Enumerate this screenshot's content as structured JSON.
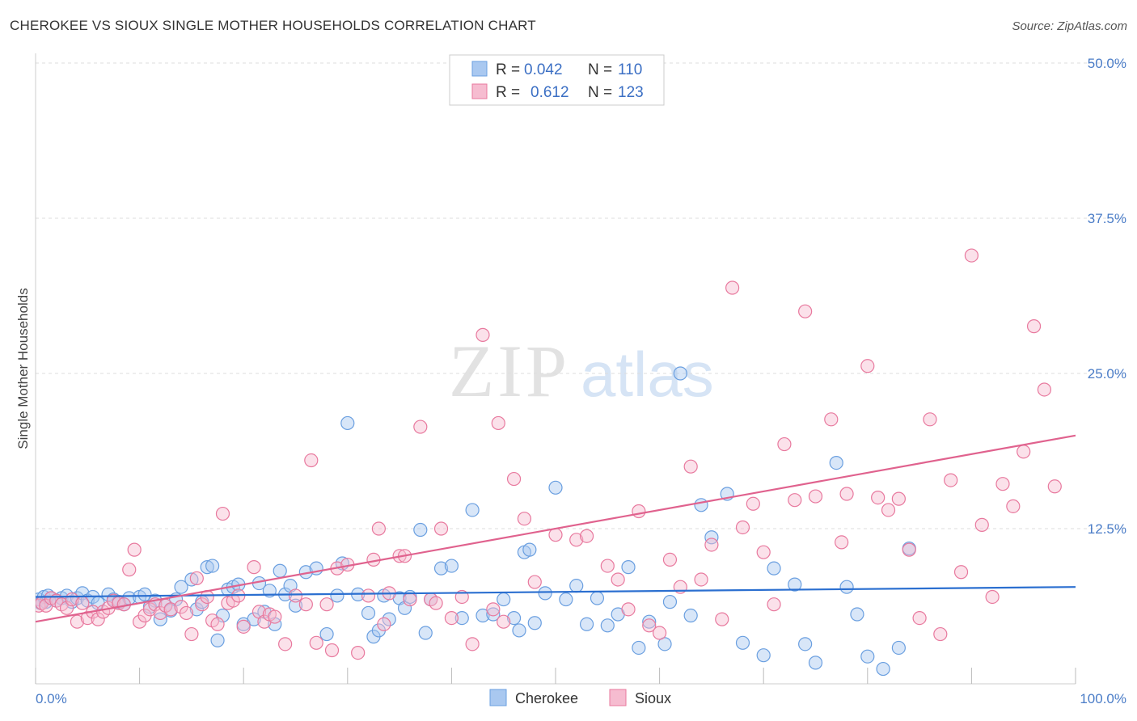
{
  "header": {
    "title": "CHEROKEE VS SIOUX SINGLE MOTHER HOUSEHOLDS CORRELATION CHART",
    "source": "Source: ZipAtlas.com"
  },
  "watermark": {
    "zip": "ZIP",
    "atlas": "atlas"
  },
  "legend": {
    "rows": [
      {
        "r_label": "R =",
        "r_value": "0.042",
        "n_label": "N =",
        "n_value": "110"
      },
      {
        "r_label": "R =",
        "r_value": "0.612",
        "n_label": "N =",
        "n_value": "123"
      }
    ]
  },
  "colors": {
    "cherokee_fill": "#a9c8f0",
    "cherokee_stroke": "#6a9fe0",
    "cherokee_line": "#2b6fd0",
    "sioux_fill": "#f6bcd0",
    "sioux_stroke": "#e8799e",
    "sioux_line": "#e0628e",
    "tick_text": "#4a7cc7",
    "grid": "#dddddd"
  },
  "chart_data": {
    "type": "scatter",
    "ylabel": "Single Mother Households",
    "xlim": [
      0,
      100
    ],
    "ylim": [
      0,
      50
    ],
    "x_tick_labels": [
      "0.0%",
      "100.0%"
    ],
    "y_ticks": [
      12.5,
      25.0,
      37.5,
      50.0
    ],
    "y_tick_labels": [
      "12.5%",
      "25.0%",
      "37.5%",
      "50.0%"
    ],
    "grid": "horizontal dashed",
    "legend_position": "top-center",
    "series": [
      {
        "name": "Cherokee",
        "n": 110,
        "r": 0.042,
        "trend": [
          [
            0,
            7.0
          ],
          [
            100,
            7.8
          ]
        ],
        "points": [
          [
            0.3,
            6.8
          ],
          [
            0.5,
            6.5
          ],
          [
            0.8,
            7.0
          ],
          [
            1.0,
            6.6
          ],
          [
            1.2,
            7.1
          ],
          [
            1.5,
            6.9
          ],
          [
            2.0,
            6.7
          ],
          [
            2.5,
            6.9
          ],
          [
            3.0,
            7.1
          ],
          [
            3.5,
            6.6
          ],
          [
            4.0,
            6.9
          ],
          [
            4.5,
            7.3
          ],
          [
            5.0,
            6.7
          ],
          [
            5.5,
            7.0
          ],
          [
            6.0,
            6.5
          ],
          [
            7.0,
            7.2
          ],
          [
            7.5,
            6.8
          ],
          [
            8.0,
            6.6
          ],
          [
            8.5,
            6.4
          ],
          [
            9.0,
            6.9
          ],
          [
            10.0,
            7.0
          ],
          [
            10.5,
            7.2
          ],
          [
            11.0,
            6.2
          ],
          [
            11.5,
            6.7
          ],
          [
            12.0,
            5.2
          ],
          [
            12.5,
            6.3
          ],
          [
            13.0,
            5.9
          ],
          [
            13.5,
            6.8
          ],
          [
            14.0,
            7.8
          ],
          [
            15.0,
            8.4
          ],
          [
            15.5,
            6.0
          ],
          [
            16.0,
            6.6
          ],
          [
            16.5,
            9.4
          ],
          [
            17.0,
            9.5
          ],
          [
            17.5,
            3.5
          ],
          [
            18.0,
            5.5
          ],
          [
            18.5,
            7.6
          ],
          [
            19.0,
            7.8
          ],
          [
            19.5,
            8.0
          ],
          [
            20.0,
            4.8
          ],
          [
            21.0,
            5.2
          ],
          [
            21.5,
            8.1
          ],
          [
            22.0,
            5.8
          ],
          [
            22.5,
            7.5
          ],
          [
            23.0,
            4.8
          ],
          [
            23.5,
            9.1
          ],
          [
            24.0,
            7.2
          ],
          [
            24.5,
            7.9
          ],
          [
            25.0,
            6.3
          ],
          [
            26.0,
            9.0
          ],
          [
            27.0,
            9.3
          ],
          [
            28.0,
            4.0
          ],
          [
            29.0,
            7.1
          ],
          [
            29.5,
            9.7
          ],
          [
            30.0,
            21.0
          ],
          [
            31.0,
            7.2
          ],
          [
            32.0,
            5.7
          ],
          [
            32.5,
            3.8
          ],
          [
            33.0,
            4.3
          ],
          [
            33.5,
            7.1
          ],
          [
            34.0,
            5.2
          ],
          [
            35.0,
            6.9
          ],
          [
            35.5,
            6.1
          ],
          [
            36.0,
            7.0
          ],
          [
            37.0,
            12.4
          ],
          [
            37.5,
            4.1
          ],
          [
            38.0,
            6.8
          ],
          [
            39.0,
            9.3
          ],
          [
            40.0,
            9.5
          ],
          [
            41.0,
            5.3
          ],
          [
            42.0,
            14.0
          ],
          [
            43.0,
            5.5
          ],
          [
            44.0,
            5.6
          ],
          [
            45.0,
            6.8
          ],
          [
            46.0,
            5.3
          ],
          [
            46.5,
            4.3
          ],
          [
            47.0,
            10.6
          ],
          [
            47.5,
            10.8
          ],
          [
            48.0,
            4.9
          ],
          [
            49.0,
            7.3
          ],
          [
            50.0,
            15.8
          ],
          [
            51.0,
            6.8
          ],
          [
            52.0,
            7.9
          ],
          [
            53.0,
            4.8
          ],
          [
            54.0,
            6.9
          ],
          [
            55.0,
            4.7
          ],
          [
            56.0,
            5.6
          ],
          [
            57.0,
            9.4
          ],
          [
            58.0,
            2.9
          ],
          [
            59.0,
            5.0
          ],
          [
            60.5,
            3.2
          ],
          [
            61.0,
            6.6
          ],
          [
            62.0,
            25.0
          ],
          [
            63.0,
            5.5
          ],
          [
            64.0,
            14.4
          ],
          [
            65.0,
            11.8
          ],
          [
            66.5,
            15.3
          ],
          [
            68.0,
            3.3
          ],
          [
            70.0,
            2.3
          ],
          [
            71.0,
            9.3
          ],
          [
            73.0,
            8.0
          ],
          [
            74.0,
            3.2
          ],
          [
            75.0,
            1.7
          ],
          [
            77.0,
            17.8
          ],
          [
            78.0,
            7.8
          ],
          [
            79.0,
            5.6
          ],
          [
            80.0,
            2.2
          ],
          [
            81.5,
            1.2
          ],
          [
            83.0,
            2.9
          ],
          [
            84.0,
            10.9
          ]
        ]
      },
      {
        "name": "Sioux",
        "n": 123,
        "r": 0.612,
        "trend": [
          [
            0,
            5.0
          ],
          [
            100,
            20.0
          ]
        ],
        "points": [
          [
            0.3,
            6.3
          ],
          [
            0.6,
            6.5
          ],
          [
            1.0,
            6.3
          ],
          [
            1.5,
            6.9
          ],
          [
            2.0,
            6.7
          ],
          [
            2.5,
            6.4
          ],
          [
            3.0,
            6.1
          ],
          [
            3.5,
            6.8
          ],
          [
            4.0,
            5.0
          ],
          [
            4.5,
            6.5
          ],
          [
            5.0,
            5.3
          ],
          [
            5.5,
            5.8
          ],
          [
            6.0,
            5.2
          ],
          [
            6.5,
            5.8
          ],
          [
            7.0,
            6.1
          ],
          [
            7.5,
            6.7
          ],
          [
            8.0,
            6.5
          ],
          [
            8.5,
            6.4
          ],
          [
            9.0,
            9.2
          ],
          [
            9.5,
            10.8
          ],
          [
            10.0,
            5.0
          ],
          [
            10.5,
            5.5
          ],
          [
            11.0,
            6.0
          ],
          [
            11.5,
            6.4
          ],
          [
            12.0,
            5.7
          ],
          [
            12.5,
            6.3
          ],
          [
            13.0,
            6.0
          ],
          [
            14.0,
            6.2
          ],
          [
            14.5,
            5.7
          ],
          [
            15.0,
            4.0
          ],
          [
            15.5,
            8.5
          ],
          [
            16.0,
            6.4
          ],
          [
            16.5,
            7.0
          ],
          [
            17.0,
            5.1
          ],
          [
            17.5,
            4.8
          ],
          [
            18.0,
            13.7
          ],
          [
            18.5,
            6.5
          ],
          [
            19.0,
            6.7
          ],
          [
            19.5,
            7.1
          ],
          [
            20.0,
            4.6
          ],
          [
            21.0,
            9.4
          ],
          [
            21.5,
            5.8
          ],
          [
            22.0,
            5.0
          ],
          [
            22.5,
            5.6
          ],
          [
            23.0,
            5.4
          ],
          [
            24.0,
            3.2
          ],
          [
            25.0,
            7.1
          ],
          [
            26.0,
            6.4
          ],
          [
            26.5,
            18.0
          ],
          [
            27.0,
            3.3
          ],
          [
            28.0,
            6.4
          ],
          [
            28.5,
            2.7
          ],
          [
            29.0,
            9.3
          ],
          [
            30.0,
            9.6
          ],
          [
            31.0,
            2.5
          ],
          [
            32.0,
            7.1
          ],
          [
            32.5,
            10.0
          ],
          [
            33.0,
            12.5
          ],
          [
            33.5,
            4.8
          ],
          [
            34.0,
            7.3
          ],
          [
            35.0,
            10.3
          ],
          [
            35.5,
            10.3
          ],
          [
            36.0,
            6.8
          ],
          [
            37.0,
            20.7
          ],
          [
            38.0,
            6.8
          ],
          [
            38.5,
            6.5
          ],
          [
            39.0,
            12.5
          ],
          [
            40.0,
            5.3
          ],
          [
            41.0,
            7.0
          ],
          [
            42.0,
            3.2
          ],
          [
            43.0,
            28.1
          ],
          [
            44.0,
            6.0
          ],
          [
            44.5,
            21.0
          ],
          [
            45.0,
            5.0
          ],
          [
            46.0,
            16.5
          ],
          [
            47.0,
            13.3
          ],
          [
            48.0,
            8.2
          ],
          [
            50.0,
            12.0
          ],
          [
            52.0,
            11.6
          ],
          [
            53.0,
            11.9
          ],
          [
            55.0,
            9.5
          ],
          [
            56.0,
            8.4
          ],
          [
            57.0,
            6.0
          ],
          [
            58.0,
            13.9
          ],
          [
            59.0,
            4.7
          ],
          [
            60.0,
            4.1
          ],
          [
            61.0,
            10.0
          ],
          [
            62.0,
            7.8
          ],
          [
            63.0,
            17.5
          ],
          [
            64.0,
            8.4
          ],
          [
            65.0,
            11.2
          ],
          [
            66.0,
            5.2
          ],
          [
            67.0,
            31.9
          ],
          [
            68.0,
            12.6
          ],
          [
            69.0,
            14.5
          ],
          [
            70.0,
            10.6
          ],
          [
            71.0,
            6.4
          ],
          [
            72.0,
            19.3
          ],
          [
            73.0,
            14.8
          ],
          [
            74.0,
            30.0
          ],
          [
            75.0,
            15.1
          ],
          [
            76.5,
            21.3
          ],
          [
            77.5,
            11.4
          ],
          [
            78.0,
            15.3
          ],
          [
            80.0,
            25.6
          ],
          [
            81.0,
            15.0
          ],
          [
            82.0,
            14.0
          ],
          [
            83.0,
            14.9
          ],
          [
            84.0,
            10.8
          ],
          [
            85.0,
            5.3
          ],
          [
            86.0,
            21.3
          ],
          [
            87.0,
            4.0
          ],
          [
            88.0,
            16.4
          ],
          [
            89.0,
            9.0
          ],
          [
            90.0,
            34.5
          ],
          [
            91.0,
            12.8
          ],
          [
            92.0,
            7.0
          ],
          [
            93.0,
            16.1
          ],
          [
            94.0,
            14.3
          ],
          [
            95.0,
            18.7
          ],
          [
            96.0,
            28.8
          ],
          [
            97.0,
            23.7
          ],
          [
            98.0,
            15.9
          ]
        ]
      }
    ]
  },
  "bottom_legend": {
    "items": [
      "Cherokee",
      "Sioux"
    ]
  }
}
